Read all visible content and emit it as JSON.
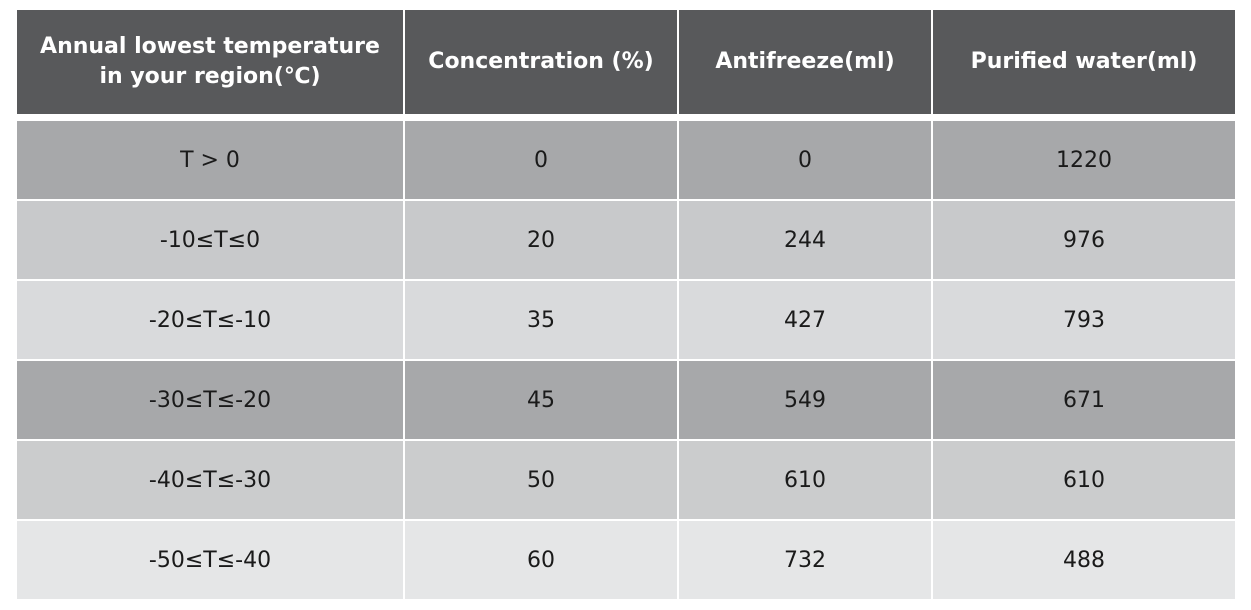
{
  "table": {
    "headers": [
      "Annual lowest temperature in your region(℃)",
      "Concentration (%)",
      "Antifreeze(ml)",
      "Purified water(ml)"
    ],
    "rows": [
      [
        "T > 0",
        "0",
        "0",
        "1220"
      ],
      [
        "-10≤T≤0",
        "20",
        "244",
        "976"
      ],
      [
        "-20≤T≤-10",
        "35",
        "427",
        "793"
      ],
      [
        "-30≤T≤-20",
        "45",
        "549",
        "671"
      ],
      [
        "-40≤T≤-30",
        "50",
        "610",
        "610"
      ],
      [
        "-50≤T≤-40",
        "60",
        "732",
        "488"
      ]
    ]
  },
  "colors": {
    "header_bg": "#58595b",
    "header_text": "#ffffff",
    "row_backgrounds": [
      "#a7a8aa",
      "#c8c9cb",
      "#d9dadc",
      "#a7a8aa",
      "#cbcccd",
      "#e5e6e7"
    ]
  }
}
